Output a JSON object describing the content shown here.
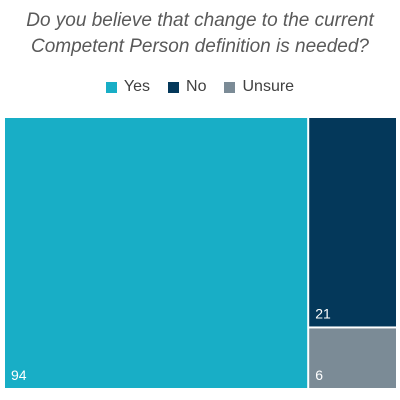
{
  "chart_data": {
    "type": "treemap",
    "title_lines": [
      "Do you believe that change to the current",
      "Competent Person definition is needed?"
    ],
    "legend_position": "top",
    "series": [
      {
        "name": "Yes",
        "value": 94,
        "color": "#18aec6"
      },
      {
        "name": "No",
        "value": 21,
        "color": "#04385a"
      },
      {
        "name": "Unsure",
        "value": 6,
        "color": "#7b8b96"
      }
    ]
  }
}
